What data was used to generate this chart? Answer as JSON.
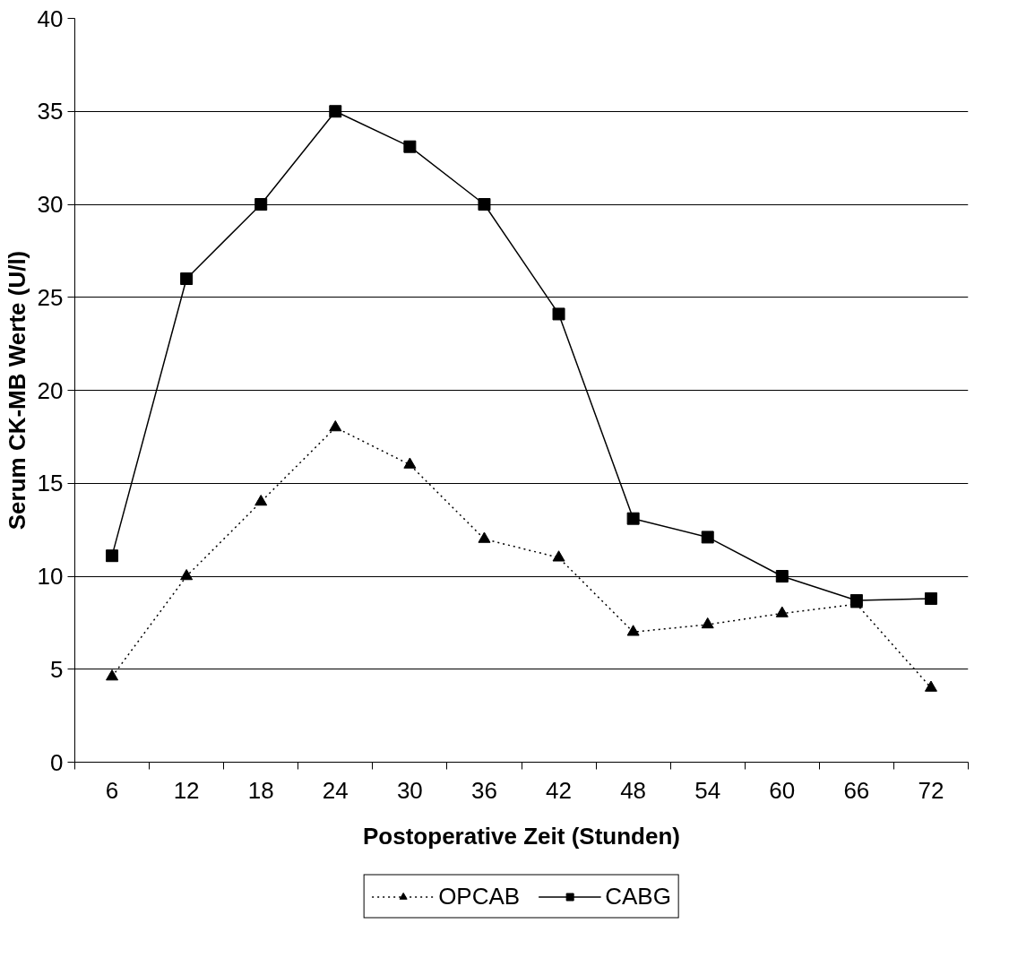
{
  "chart_data": {
    "type": "line",
    "xlabel": "Postoperative Zeit (Stunden)",
    "ylabel": "Serum CK-MB Werte (U/l)",
    "categories": [
      "6",
      "12",
      "18",
      "24",
      "30",
      "36",
      "42",
      "48",
      "54",
      "60",
      "66",
      "72"
    ],
    "series": [
      {
        "name": "OPCAB",
        "color": "#000000",
        "marker": "triangle",
        "line_style": "dotted",
        "values": [
          4.6,
          10,
          14,
          18,
          16,
          12,
          11,
          7,
          7.4,
          8,
          8.5,
          4
        ]
      },
      {
        "name": "CABG",
        "color": "#000000",
        "marker": "square",
        "line_style": "solid",
        "values": [
          11.1,
          26,
          30,
          35,
          33.1,
          30,
          24.1,
          13.1,
          12.1,
          10,
          8.7,
          8.8
        ]
      }
    ],
    "ylim": [
      0,
      40
    ],
    "yticks": [
      0,
      5,
      10,
      15,
      20,
      25,
      30,
      35,
      40
    ],
    "grid": "y",
    "legend": "bottom"
  }
}
